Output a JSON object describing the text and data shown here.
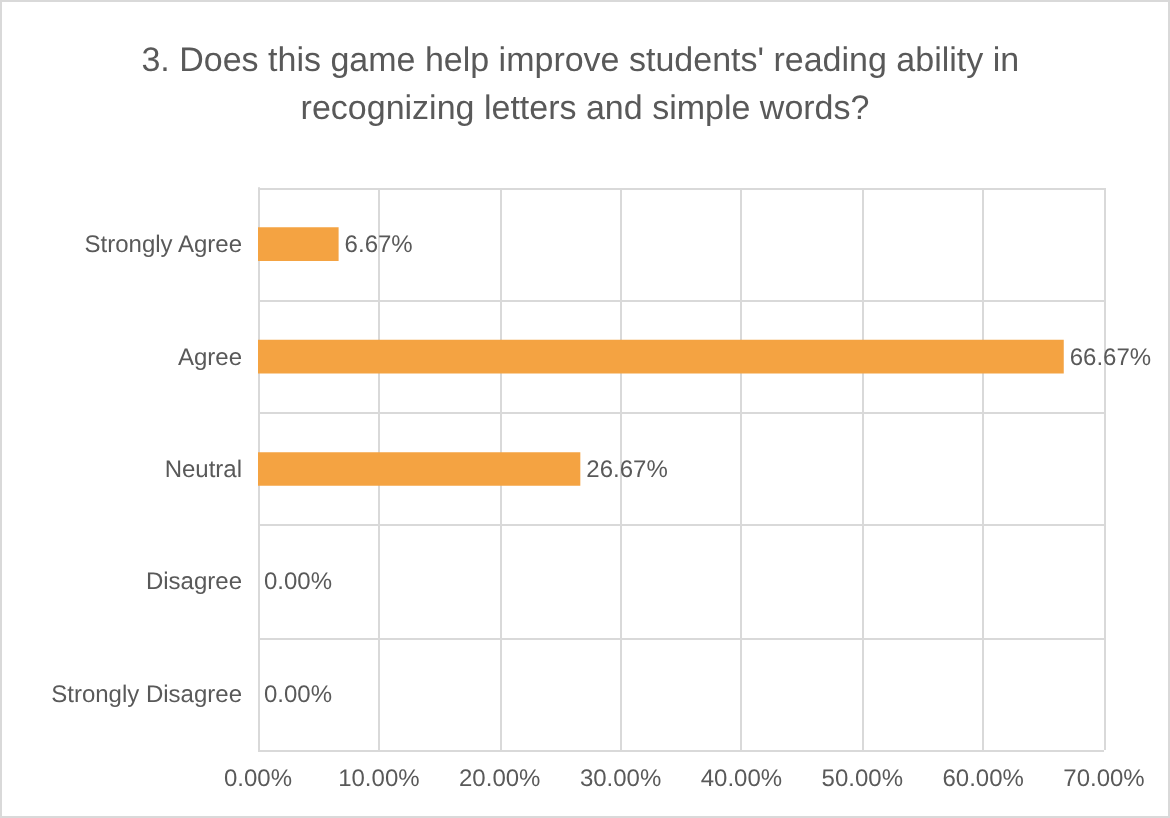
{
  "chart_data": {
    "type": "bar",
    "orientation": "horizontal",
    "title": "3. Does this game help improve students' reading ability in recognizing letters and simple words?",
    "categories": [
      "Strongly Agree",
      "Agree",
      "Neutral",
      "Disagree",
      "Strongly Disagree"
    ],
    "values": [
      6.67,
      66.67,
      26.67,
      0,
      0
    ],
    "value_labels": [
      "6.67%",
      "66.67%",
      "26.67%",
      "0.00%",
      "0.00%"
    ],
    "color": "#f4a342",
    "xlim": [
      0,
      70
    ],
    "xticks": [
      {
        "value": 0,
        "label": "0.00%"
      },
      {
        "value": 10,
        "label": "10.00%"
      },
      {
        "value": 20,
        "label": "20.00%"
      },
      {
        "value": 30,
        "label": "30.00%"
      },
      {
        "value": 40,
        "label": "40.00%"
      },
      {
        "value": 50,
        "label": "50.00%"
      },
      {
        "value": 60,
        "label": "60.00%"
      },
      {
        "value": 70,
        "label": "70.00%"
      }
    ],
    "grid": true
  }
}
